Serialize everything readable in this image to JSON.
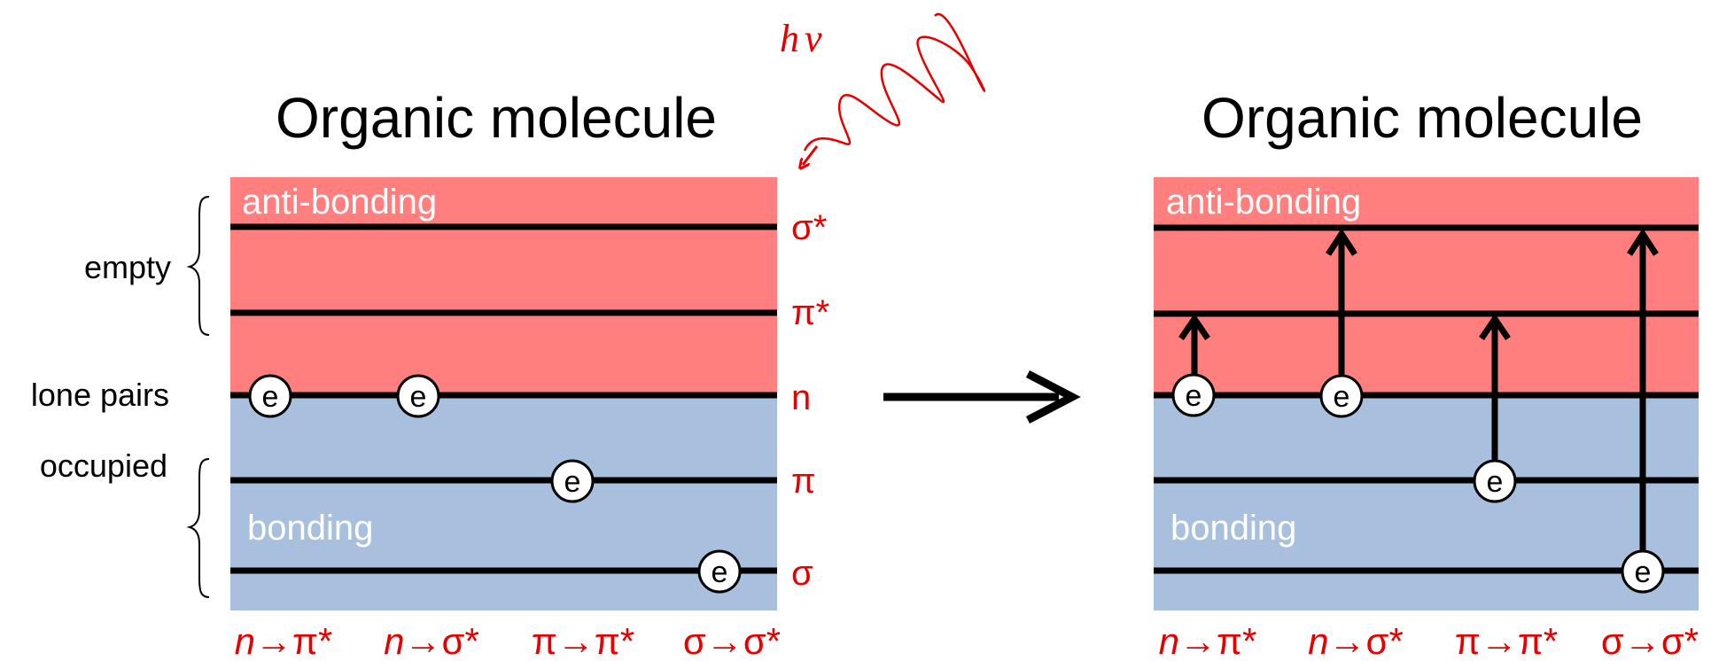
{
  "left_panel": {
    "title": "Organic molecule",
    "antibonding_label": "anti-bonding",
    "bonding_label": "bonding",
    "side_labels": {
      "empty": "empty",
      "lone_pairs": "lone pairs",
      "occupied": "occupied"
    },
    "orbitals": [
      "σ*",
      "π*",
      "n",
      "π",
      "σ"
    ],
    "electron_symbol": "e",
    "transitions": [
      {
        "from": "n",
        "arrow": "→",
        "to": "π*"
      },
      {
        "from": "n",
        "arrow": "→",
        "to": "σ*"
      },
      {
        "from": "π",
        "arrow": "→",
        "to": "π*"
      },
      {
        "from": "σ",
        "arrow": "→",
        "to": "σ*"
      }
    ]
  },
  "photon_label": {
    "h": "h",
    "nu": "ν"
  },
  "right_panel": {
    "title": "Organic molecule",
    "antibonding_label": "anti-bonding",
    "bonding_label": "bonding",
    "electron_symbol": "e",
    "transitions": [
      {
        "from": "n",
        "arrow": "→",
        "to": "π*"
      },
      {
        "from": "n",
        "arrow": "→",
        "to": "σ*"
      },
      {
        "from": "π",
        "arrow": "→",
        "to": "π*"
      },
      {
        "from": "σ",
        "arrow": "→",
        "to": "σ*"
      }
    ]
  },
  "colors": {
    "antibonding": "#ff7f7f",
    "bonding": "#a8c0de",
    "accent": "#e60000",
    "level": "#000000"
  }
}
